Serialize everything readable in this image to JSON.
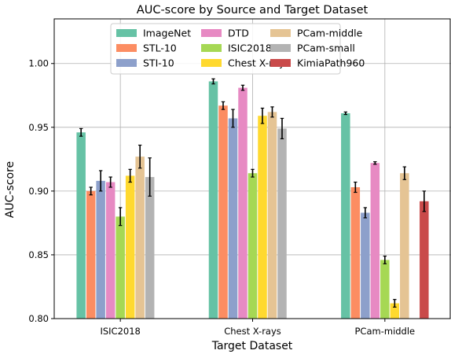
{
  "chart_data": {
    "type": "bar",
    "title": "AUC-score by Source and Target Dataset",
    "xlabel": "Target Dataset",
    "ylabel": "AUC-score",
    "ylim": [
      0.8,
      1.035
    ],
    "yticks": [
      "0.80",
      "0.85",
      "0.90",
      "0.95",
      "1.00"
    ],
    "grid": true,
    "legend_position": "top-center",
    "legend_columns": 3,
    "categories": [
      "ISIC2018",
      "Chest X-rays",
      "PCam-middle"
    ],
    "series": [
      {
        "name": "ImageNet",
        "color": "#66c2a5",
        "values": [
          0.946,
          0.986,
          0.961
        ],
        "errors": [
          0.003,
          0.002,
          0.001
        ]
      },
      {
        "name": "STL-10",
        "color": "#fc8d62",
        "values": [
          0.9,
          0.967,
          0.903
        ],
        "errors": [
          0.003,
          0.003,
          0.004
        ]
      },
      {
        "name": "STI-10",
        "color": "#8da0cb",
        "values": [
          0.908,
          0.957,
          0.883
        ],
        "errors": [
          0.008,
          0.007,
          0.004
        ]
      },
      {
        "name": "DTD",
        "color": "#e78ac3",
        "values": [
          0.907,
          0.981,
          0.922
        ],
        "errors": [
          0.004,
          0.002,
          0.001
        ]
      },
      {
        "name": "ISIC2018",
        "color": "#a6d854",
        "values": [
          0.88,
          0.914,
          0.846
        ],
        "errors": [
          0.007,
          0.003,
          0.003
        ]
      },
      {
        "name": "Chest X-rays",
        "color": "#ffd92f",
        "values": [
          0.912,
          0.959,
          0.812
        ],
        "errors": [
          0.005,
          0.006,
          0.003
        ]
      },
      {
        "name": "PCam-middle",
        "color": "#e5c494",
        "values": [
          0.927,
          0.962,
          0.914
        ],
        "errors": [
          0.009,
          0.004,
          0.005
        ]
      },
      {
        "name": "PCam-small",
        "color": "#b3b3b3",
        "values": [
          0.911,
          0.949,
          null
        ],
        "errors": [
          0.015,
          0.008,
          null
        ]
      },
      {
        "name": "KimiaPath960",
        "color": "#c94a4a",
        "values": [
          null,
          null,
          0.892
        ],
        "errors": [
          null,
          null,
          0.008
        ]
      }
    ]
  }
}
